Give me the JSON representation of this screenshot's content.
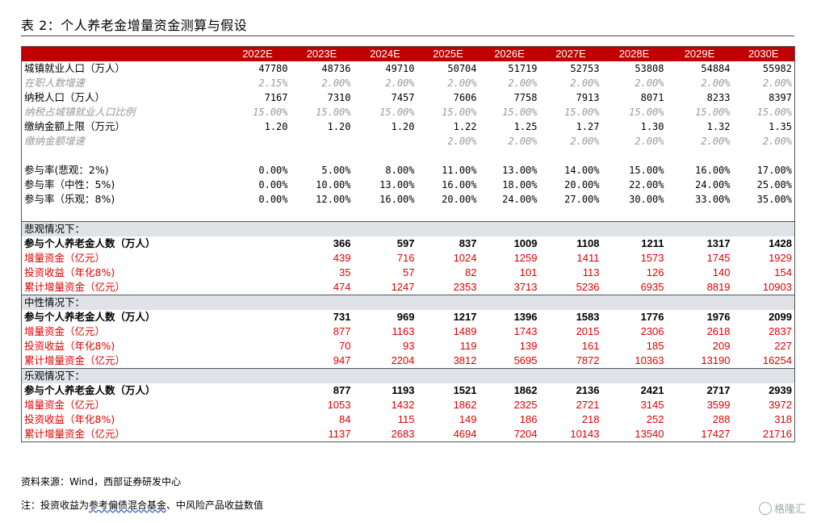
{
  "title": "表 2：个人养老金增量资金测算与假设",
  "header": [
    "",
    "2022E",
    "2023E",
    "2024E",
    "2025E",
    "2026E",
    "2027E",
    "2028E",
    "2029E",
    "2030E"
  ],
  "rows": [
    {
      "style": "normal",
      "label": "城镇就业人口（万人）",
      "values": [
        "47780",
        "48736",
        "49710",
        "50704",
        "51719",
        "52753",
        "53808",
        "54884",
        "55982"
      ]
    },
    {
      "style": "muted",
      "label": "在职人数增速",
      "values": [
        "2.15%",
        "2.00%",
        "2.00%",
        "2.00%",
        "2.00%",
        "2.00%",
        "2.00%",
        "2.00%",
        "2.00%"
      ]
    },
    {
      "style": "normal",
      "label": "纳税人口（万人）",
      "values": [
        "7167",
        "7310",
        "7457",
        "7606",
        "7758",
        "7913",
        "8071",
        "8233",
        "8397"
      ]
    },
    {
      "style": "muted",
      "label": "纳税占城镇就业人口比例",
      "values": [
        "15.00%",
        "15.00%",
        "15.00%",
        "15.00%",
        "15.00%",
        "15.00%",
        "15.00%",
        "15.00%",
        "15.00%"
      ]
    },
    {
      "style": "normal",
      "label": "缴纳金额上限（万元）",
      "values": [
        "1.20",
        "1.20",
        "1.20",
        "1.22",
        "1.25",
        "1.27",
        "1.30",
        "1.32",
        "1.35"
      ]
    },
    {
      "style": "muted",
      "label": "缴纳金额增速",
      "values": [
        "",
        "",
        "",
        "2.00%",
        "2.00%",
        "2.00%",
        "2.00%",
        "2.00%",
        "2.00%"
      ]
    },
    {
      "style": "spacer",
      "label": "",
      "values": [
        "",
        "",
        "",
        "",
        "",
        "",
        "",
        "",
        ""
      ]
    },
    {
      "style": "normal",
      "label": "参与率(悲观：2%)",
      "values": [
        "0.00%",
        "5.00%",
        "8.00%",
        "11.00%",
        "13.00%",
        "14.00%",
        "15.00%",
        "16.00%",
        "17.00%"
      ]
    },
    {
      "style": "normal",
      "label": "参与率（中性：5%)",
      "values": [
        "0.00%",
        "10.00%",
        "13.00%",
        "16.00%",
        "18.00%",
        "20.00%",
        "22.00%",
        "24.00%",
        "25.00%"
      ]
    },
    {
      "style": "normal",
      "label": "参与率（乐观：8%)",
      "values": [
        "0.00%",
        "12.00%",
        "16.00%",
        "20.00%",
        "24.00%",
        "27.00%",
        "30.00%",
        "33.00%",
        "35.00%"
      ]
    },
    {
      "style": "spacer",
      "label": "",
      "values": [
        "",
        "",
        "",
        "",
        "",
        "",
        "",
        "",
        ""
      ]
    },
    {
      "style": "section",
      "label": "悲观情况下：",
      "values": [
        "",
        "",
        "",
        "",
        "",
        "",
        "",
        "",
        ""
      ]
    },
    {
      "style": "bold",
      "label": "参与个人养老金人数（万人）",
      "values": [
        "366",
        "597",
        "837",
        "1009",
        "1108",
        "1211",
        "1317",
        "1428"
      ],
      "offset": 1
    },
    {
      "style": "red",
      "label": "增量资金（亿元）",
      "values": [
        "439",
        "716",
        "1024",
        "1259",
        "1411",
        "1573",
        "1745",
        "1929"
      ],
      "offset": 1
    },
    {
      "style": "red",
      "label": "投资收益（年化8%)",
      "values": [
        "35",
        "57",
        "82",
        "101",
        "113",
        "126",
        "140",
        "154"
      ],
      "offset": 1
    },
    {
      "style": "red",
      "label": "累计增量资金（亿元）",
      "values": [
        "474",
        "1247",
        "2353",
        "3713",
        "5236",
        "6935",
        "8819",
        "10903"
      ],
      "offset": 1
    },
    {
      "style": "section",
      "label": "中性情况下：",
      "values": [
        "",
        "",
        "",
        "",
        "",
        "",
        "",
        "",
        ""
      ]
    },
    {
      "style": "bold",
      "label": "参与个人养老金人数（万人）",
      "values": [
        "731",
        "969",
        "1217",
        "1396",
        "1583",
        "1776",
        "1976",
        "2099"
      ],
      "offset": 1
    },
    {
      "style": "red",
      "label": "增量资金（亿元）",
      "values": [
        "877",
        "1163",
        "1489",
        "1743",
        "2015",
        "2306",
        "2618",
        "2837"
      ],
      "offset": 1
    },
    {
      "style": "red",
      "label": "投资收益（年化8%)",
      "values": [
        "70",
        "93",
        "119",
        "139",
        "161",
        "185",
        "209",
        "227"
      ],
      "offset": 1
    },
    {
      "style": "red",
      "label": "累计增量资金（亿元）",
      "values": [
        "947",
        "2204",
        "3812",
        "5695",
        "7872",
        "10363",
        "13190",
        "16254"
      ],
      "offset": 1
    },
    {
      "style": "section",
      "label": "乐观情况下：",
      "values": [
        "",
        "",
        "",
        "",
        "",
        "",
        "",
        "",
        ""
      ]
    },
    {
      "style": "bold",
      "label": "参与个人养老金人数（万人）",
      "values": [
        "877",
        "1193",
        "1521",
        "1862",
        "2136",
        "2421",
        "2717",
        "2939"
      ],
      "offset": 1
    },
    {
      "style": "red",
      "label": "增量资金（亿元）",
      "values": [
        "1053",
        "1432",
        "1862",
        "2325",
        "2721",
        "3145",
        "3599",
        "3972"
      ],
      "offset": 1
    },
    {
      "style": "red",
      "label": "投资收益（年化8%)",
      "values": [
        "84",
        "115",
        "149",
        "186",
        "218",
        "252",
        "288",
        "318"
      ],
      "offset": 1
    },
    {
      "style": "red",
      "label": "累计增量资金（亿元）",
      "values": [
        "1137",
        "2683",
        "4694",
        "7204",
        "10143",
        "13540",
        "17427",
        "21716"
      ],
      "offset": 1
    }
  ],
  "source": "资料来源：Wind，西部证券研发中心",
  "note_prefix": "注：投资收益为",
  "note_underlined": "参考偏债混合基金",
  "note_suffix": "、中风险产品收益数值",
  "watermark": "格隆汇",
  "colors": {
    "header_bg": "#c00000",
    "section_bg": "#dfe3e8",
    "red_text": "#e00000",
    "muted_text": "#999999"
  }
}
